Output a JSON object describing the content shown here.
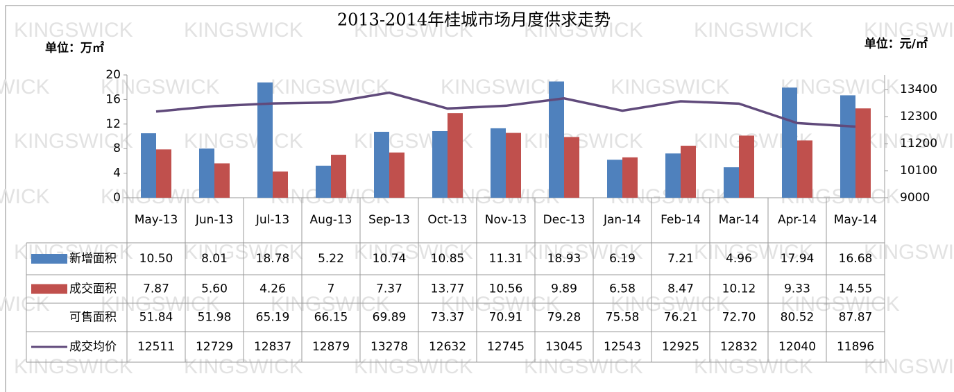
{
  "chart_data": {
    "type": "bar-line-table",
    "title": "2013-2014年桂城市场月度供求走势",
    "y_label": "单位：万㎡",
    "y2_label": "单位：元/㎡",
    "watermark": "KINGSWICK",
    "categories": [
      "May-13",
      "Jun-13",
      "Jul-13",
      "Aug-13",
      "Sep-13",
      "Oct-13",
      "Nov-13",
      "Dec-13",
      "Jan-14",
      "Feb-14",
      "Mar-14",
      "Apr-14",
      "May-14"
    ],
    "ylim": [
      0,
      20
    ],
    "yticks": [
      0,
      4,
      8,
      12,
      16,
      20
    ],
    "y2lim": [
      9000,
      14000
    ],
    "y2ticks": [
      9000,
      10100,
      11200,
      12300,
      13400
    ],
    "series": [
      {
        "name": "新增面积",
        "type": "bar",
        "color": "#4f81bd",
        "values": [
          10.5,
          8.01,
          18.78,
          5.22,
          10.74,
          10.85,
          11.31,
          18.93,
          6.19,
          7.21,
          4.96,
          17.94,
          16.68
        ],
        "value_labels": [
          "10.50",
          "8.01",
          "18.78",
          "5.22",
          "10.74",
          "10.85",
          "11.31",
          "18.93",
          "6.19",
          "7.21",
          "4.96",
          "17.94",
          "16.68"
        ]
      },
      {
        "name": "成交面积",
        "type": "bar",
        "color": "#c0504d",
        "values": [
          7.87,
          5.6,
          4.26,
          7,
          7.37,
          13.77,
          10.56,
          9.89,
          6.58,
          8.47,
          10.12,
          9.33,
          14.55
        ],
        "value_labels": [
          "7.87",
          "5.60",
          "4.26",
          "7",
          "7.37",
          "13.77",
          "10.56",
          "9.89",
          "6.58",
          "8.47",
          "10.12",
          "9.33",
          "14.55"
        ]
      },
      {
        "name": "可售面积",
        "type": "table",
        "values": [
          51.84,
          51.98,
          65.19,
          66.15,
          69.89,
          73.37,
          70.91,
          79.28,
          75.58,
          76.21,
          72.7,
          80.52,
          87.87
        ],
        "value_labels": [
          "51.84",
          "51.98",
          "65.19",
          "66.15",
          "69.89",
          "73.37",
          "70.91",
          "79.28",
          "75.58",
          "76.21",
          "72.70",
          "80.52",
          "87.87"
        ]
      },
      {
        "name": "成交均价",
        "type": "line",
        "axis": "y2",
        "color": "#604a7b",
        "values": [
          12511,
          12729,
          12837,
          12879,
          13278,
          12632,
          12745,
          13045,
          12543,
          12925,
          12832,
          12040,
          11896
        ]
      }
    ]
  }
}
